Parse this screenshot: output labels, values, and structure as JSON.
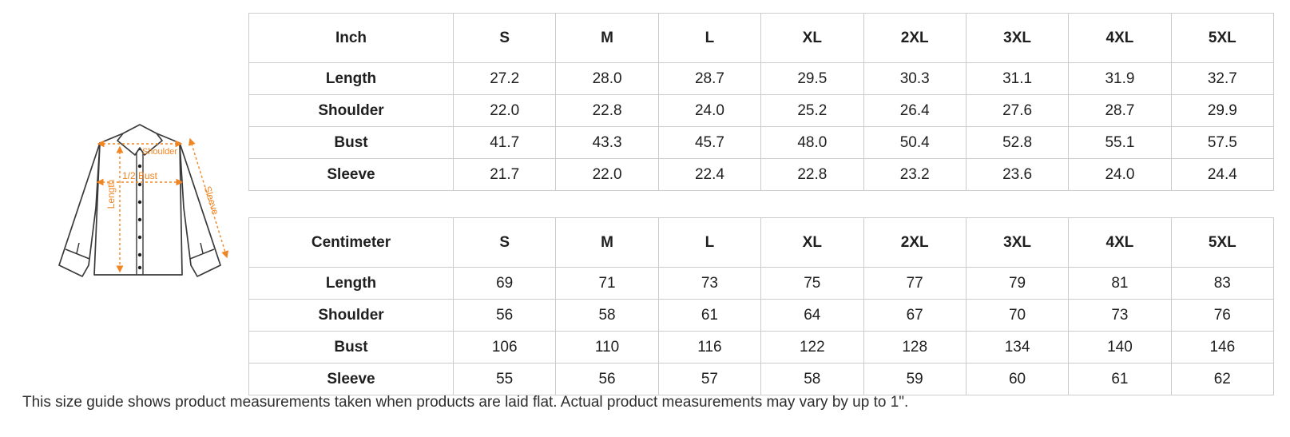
{
  "figure": {
    "accent_color": "#f08521",
    "outline_color": "#3a3a3a",
    "labels": {
      "shoulder": "Shoulder",
      "bust": "1/2 Bust",
      "length": "Length",
      "sleeve": "Sleeve"
    }
  },
  "tables": [
    {
      "unit_header": "Inch",
      "size_headers": [
        "S",
        "M",
        "L",
        "XL",
        "2XL",
        "3XL",
        "4XL",
        "5XL"
      ],
      "rows": [
        {
          "label": "Length",
          "values": [
            "27.2",
            "28.0",
            "28.7",
            "29.5",
            "30.3",
            "31.1",
            "31.9",
            "32.7"
          ]
        },
        {
          "label": "Shoulder",
          "values": [
            "22.0",
            "22.8",
            "24.0",
            "25.2",
            "26.4",
            "27.6",
            "28.7",
            "29.9"
          ]
        },
        {
          "label": "Bust",
          "values": [
            "41.7",
            "43.3",
            "45.7",
            "48.0",
            "50.4",
            "52.8",
            "55.1",
            "57.5"
          ]
        },
        {
          "label": "Sleeve",
          "values": [
            "21.7",
            "22.0",
            "22.4",
            "22.8",
            "23.2",
            "23.6",
            "24.0",
            "24.4"
          ]
        }
      ]
    },
    {
      "unit_header": "Centimeter",
      "size_headers": [
        "S",
        "M",
        "L",
        "XL",
        "2XL",
        "3XL",
        "4XL",
        "5XL"
      ],
      "rows": [
        {
          "label": "Length",
          "values": [
            "69",
            "71",
            "73",
            "75",
            "77",
            "79",
            "81",
            "83"
          ]
        },
        {
          "label": "Shoulder",
          "values": [
            "56",
            "58",
            "61",
            "64",
            "67",
            "70",
            "73",
            "76"
          ]
        },
        {
          "label": "Bust",
          "values": [
            "106",
            "110",
            "116",
            "122",
            "128",
            "134",
            "140",
            "146"
          ]
        },
        {
          "label": "Sleeve",
          "values": [
            "55",
            "56",
            "57",
            "58",
            "59",
            "60",
            "61",
            "62"
          ]
        }
      ]
    }
  ],
  "footer": {
    "note": "This size guide shows product measurements taken when products are laid flat. Actual product measurements may vary by up to 1\"."
  }
}
